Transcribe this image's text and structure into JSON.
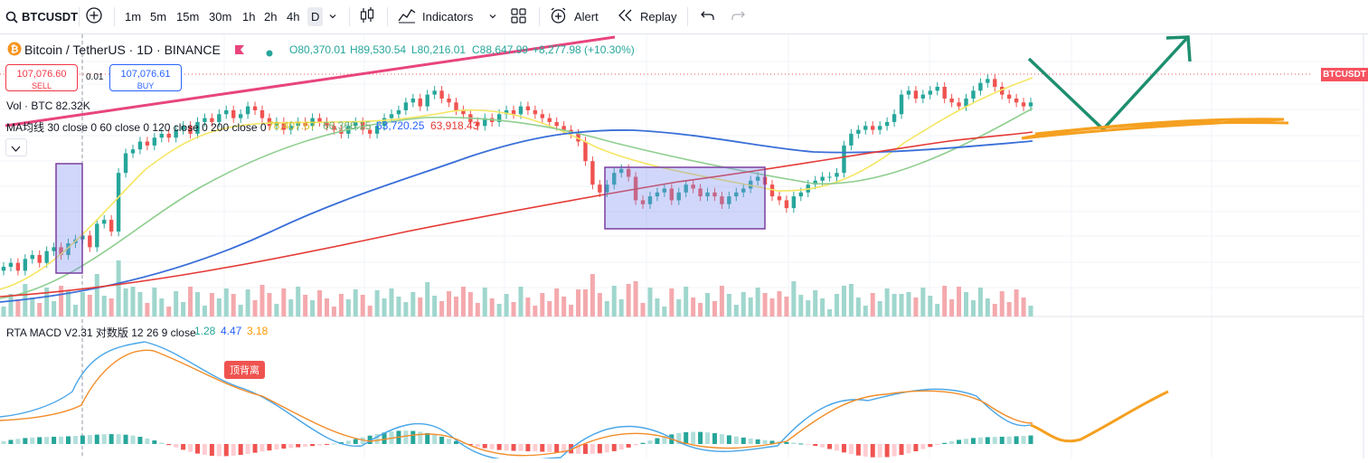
{
  "toolbar": {
    "symbol": "BTCUSDT",
    "timeframes": [
      "1m",
      "5m",
      "15m",
      "30m",
      "1h",
      "2h",
      "4h",
      "D"
    ],
    "active_timeframe": "D",
    "indicators_label": "Indicators",
    "alert_label": "Alert",
    "replay_label": "Replay"
  },
  "legend": {
    "symbol_name": "Bitcoin / TetherUS · 1D · BINANCE",
    "open": "O80,370.01",
    "high": "H89,530.54",
    "low": "L80,216.01",
    "close": "C88,647.99",
    "change": "+8,277.98 (+10.30%)",
    "sell_price": "107,076.60",
    "sell_label": "SELL",
    "spread": "0.01",
    "buy_price": "107,076.61",
    "buy_label": "BUY",
    "volume": "Vol · BTC  82.32K",
    "ma_label": "MA均线 30 close 0 60 close 0 120 close 0 200 close 0",
    "ma_values": [
      "78,407.67",
      "66,366.15",
      "63,720.25",
      "63,918.43"
    ],
    "ma_colors": [
      "#e8d84b",
      "#7fbf7f",
      "#2962ff",
      "#e53935"
    ]
  },
  "price_tag": "BTCUSDT",
  "macd": {
    "label": "RTA MACD V2.31 对数版 12 26 9 close",
    "values": [
      "1.28",
      "4.47",
      "3.18"
    ],
    "value_colors": [
      "#26a69a",
      "#2962ff",
      "#ff9800"
    ],
    "annotation": "顶背离"
  },
  "colors": {
    "up": "#26a69a",
    "down": "#ef5350",
    "ma30": "#f5e663",
    "ma60": "#8fce8f",
    "ma120": "#3a6fd8",
    "ma200": "#e53935",
    "trend": "#e8457d",
    "box": "#7b3fa0",
    "drawing_green": "#1e8f6f",
    "drawing_orange": "#f5a020",
    "macd_line": "#4aa6e8",
    "signal_line": "#f28c28"
  },
  "chart_data": {
    "type": "candlestick",
    "candles_close": [
      61,
      62,
      60,
      63,
      64,
      62,
      65,
      66,
      64,
      67,
      68,
      69,
      66,
      72,
      73,
      70,
      85,
      90,
      91,
      93,
      92,
      94,
      95,
      94,
      96,
      97,
      95,
      98,
      99,
      98,
      100,
      101,
      99,
      100,
      102,
      101,
      99,
      97,
      98,
      96,
      97,
      98,
      97,
      99,
      98,
      97,
      96,
      95,
      97,
      98,
      96,
      95,
      97,
      99,
      100,
      101,
      103,
      104,
      102,
      105,
      106,
      104,
      103,
      101,
      100,
      98,
      97,
      99,
      98,
      100,
      101,
      100,
      102,
      101,
      100,
      99,
      98,
      97,
      96,
      95,
      93,
      88,
      82,
      80,
      82,
      85,
      86,
      84,
      78,
      77,
      79,
      80,
      81,
      78,
      80,
      82,
      81,
      79,
      80,
      79,
      77,
      79,
      80,
      81,
      83,
      84,
      82,
      79,
      78,
      76,
      79,
      80,
      82,
      83,
      84,
      84,
      85,
      92,
      95,
      96,
      97,
      96,
      97,
      98,
      100,
      105,
      106,
      104,
      105,
      106,
      107,
      104,
      103,
      102,
      104,
      106,
      108,
      109,
      107,
      105,
      104,
      103,
      102,
      103
    ]
  }
}
